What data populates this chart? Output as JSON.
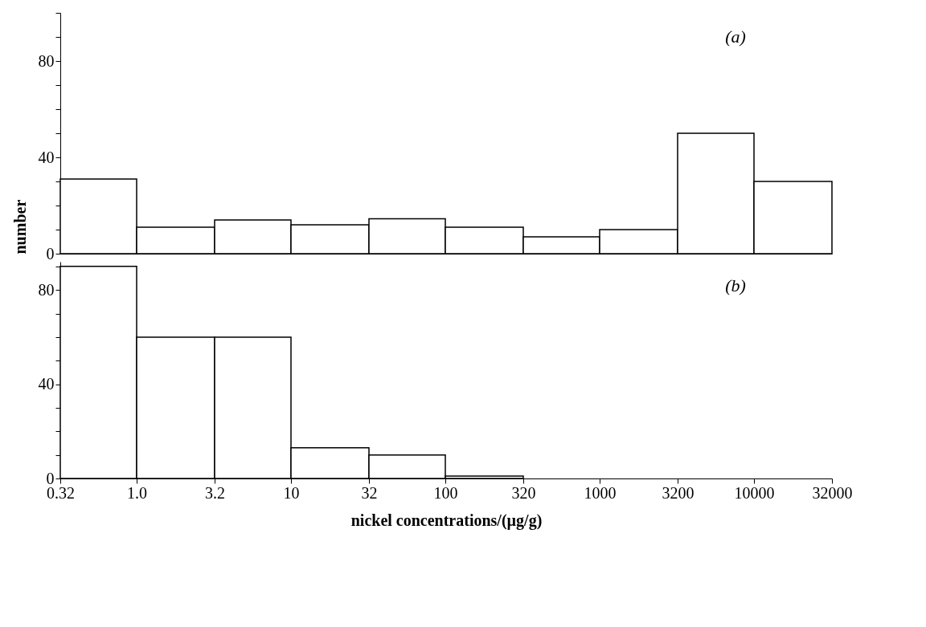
{
  "chart_data": [
    {
      "type": "histogram",
      "bins": [
        0.32,
        1,
        3.2,
        10,
        32,
        100,
        320,
        1000,
        3200,
        10000,
        32000
      ],
      "values": [
        31,
        11,
        14,
        12,
        14.5,
        11,
        7,
        10,
        50,
        30
      ],
      "color": "#ffffff",
      "log": "x",
      "xlim": [
        0.32,
        32000
      ],
      "ylim": [
        0,
        100
      ],
      "yticks": [
        0,
        {
          "value": 10,
          "label": null
        },
        {
          "value": 20,
          "label": null
        },
        {
          "value": 30,
          "label": null
        },
        40,
        {
          "value": 50,
          "label": null
        },
        {
          "value": 60,
          "label": null
        },
        {
          "value": 70,
          "label": null
        },
        80,
        {
          "value": 90,
          "label": null
        },
        {
          "value": 100,
          "label": null
        }
      ],
      "ylabel": "number",
      "tick_labels": "y",
      "grid": false,
      "annotations": [
        "(a)"
      ]
    },
    {
      "type": "histogram",
      "bins": [
        0.32,
        1,
        3.2,
        10,
        32,
        100,
        320
      ],
      "values": [
        90,
        60,
        60,
        13,
        10,
        1
      ],
      "color": "#ffffff",
      "log": "x",
      "xlim": [
        0.32,
        32000
      ],
      "ylim": [
        0,
        92
      ],
      "xticks": [
        0.32,
        {
          "value": 1,
          "label": "1.0"
        },
        3.2,
        10,
        32,
        100,
        320,
        1000,
        3200,
        10000,
        32000
      ],
      "yticks": [
        0,
        {
          "value": 10,
          "label": null
        },
        {
          "value": 20,
          "label": null
        },
        {
          "value": 30,
          "label": null
        },
        40,
        {
          "value": 50,
          "label": null
        },
        {
          "value": 60,
          "label": null
        },
        {
          "value": 70,
          "label": null
        },
        80,
        {
          "value": 90,
          "label": null
        }
      ],
      "xlabel": "nickel concentrations/(µg/g)",
      "grid": false,
      "annotations": [
        "(b)"
      ]
    }
  ]
}
